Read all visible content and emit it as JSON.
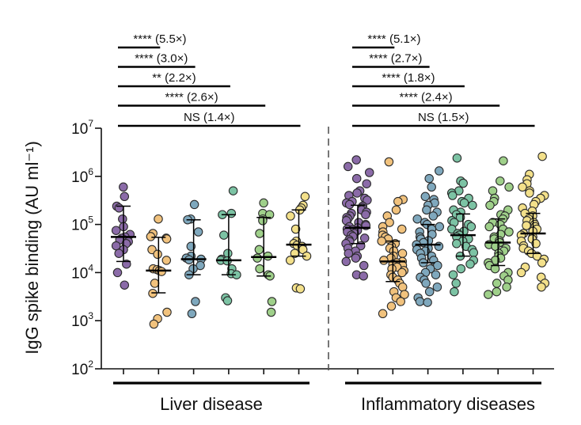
{
  "chart_data": {
    "type": "scatter",
    "y_scale": "log10",
    "ylabel": "IgG spike binding (AU ml⁻¹)",
    "ylim": [
      100,
      10000000
    ],
    "y_ticks": [
      {
        "value": 100,
        "base": "10",
        "exp": "2"
      },
      {
        "value": 1000,
        "base": "10",
        "exp": "3"
      },
      {
        "value": 10000,
        "base": "10",
        "exp": "4"
      },
      {
        "value": 100000,
        "base": "10",
        "exp": "5"
      },
      {
        "value": 1000000,
        "base": "10",
        "exp": "6"
      },
      {
        "value": 10000000,
        "base": "10",
        "exp": "7"
      }
    ],
    "colors": [
      "#8b6ba8",
      "#f1c27d",
      "#7fa8bd",
      "#7cc3a4",
      "#9fd08a",
      "#f3e08a"
    ],
    "panels": [
      {
        "label": "Liver disease",
        "series": [
          {
            "values": [
              600000,
              380000,
              240000,
              220000,
              130000,
              90000,
              75000,
              62000,
              55000,
              52000,
              48000,
              44000,
              40000,
              36000,
              30000,
              25000,
              15000,
              10000,
              5500
            ],
            "median": 55000,
            "q1": 17000,
            "q3": 240000
          },
          {
            "values": [
              130000,
              65000,
              56000,
              52000,
              50000,
              30000,
              24000,
              18000,
              12000,
              11500,
              11000,
              10500,
              6000,
              3700,
              1500,
              1100,
              850
            ],
            "median": 11000,
            "q1": 3800,
            "q3": 54000
          },
          {
            "values": [
              260000,
              130000,
              125000,
              70000,
              35000,
              22000,
              20000,
              19000,
              18500,
              14000,
              12000,
              9000,
              2500,
              1400
            ],
            "median": 19000,
            "q1": 9000,
            "q3": 125000
          },
          {
            "values": [
              500000,
              170000,
              160000,
              60000,
              25000,
              19000,
              18000,
              17500,
              12000,
              9500,
              9000,
              3000,
              2600
            ],
            "median": 18000,
            "q1": 9000,
            "q3": 160000
          },
          {
            "values": [
              280000,
              170000,
              160000,
              130000,
              120000,
              65000,
              30000,
              22000,
              20000,
              12000,
              9000,
              8500,
              2500,
              1500
            ],
            "median": 21000,
            "q1": 8500,
            "q3": 140000
          },
          {
            "values": [
              380000,
              250000,
              220000,
              200000,
              150000,
              80000,
              45000,
              40000,
              37000,
              35000,
              30000,
              25000,
              22000,
              18000,
              4800,
              4600
            ],
            "median": 38000,
            "q1": 22000,
            "q3": 200000
          }
        ]
      },
      {
        "label": "Inflammatory diseases",
        "series": [
          {
            "values": [
              2200000,
              1600000,
              1200000,
              900000,
              700000,
              500000,
              450000,
              400000,
              350000,
              320000,
              300000,
              280000,
              260000,
              240000,
              220000,
              200000,
              180000,
              170000,
              160000,
              150000,
              140000,
              130000,
              120000,
              110000,
              100000,
              95000,
              90000,
              85000,
              80000,
              78000,
              75000,
              70000,
              65000,
              60000,
              56000,
              52000,
              48000,
              44000,
              40000,
              36000,
              32000,
              28000,
              25000,
              22000,
              20000,
              17000,
              14000,
              9000,
              8500
            ],
            "median": 85000,
            "q1": 40000,
            "q3": 250000
          },
          {
            "values": [
              2000000,
              330000,
              300000,
              200000,
              150000,
              110000,
              90000,
              80000,
              70000,
              60000,
              55000,
              50000,
              45000,
              40000,
              35000,
              32000,
              28000,
              25000,
              22000,
              20000,
              18000,
              17000,
              16000,
              15000,
              14000,
              13000,
              12000,
              11000,
              10000,
              9000,
              8000,
              7000,
              6000,
              5000,
              4000,
              3500,
              3000,
              2500,
              2000,
              1400
            ],
            "median": 17000,
            "q1": 6500,
            "q3": 45000
          },
          {
            "values": [
              1300000,
              900000,
              600000,
              380000,
              330000,
              280000,
              250000,
              200000,
              180000,
              150000,
              130000,
              110000,
              100000,
              90000,
              80000,
              70000,
              62000,
              55000,
              50000,
              46000,
              42000,
              38000,
              35000,
              32000,
              30000,
              28000,
              25000,
              22000,
              20000,
              18000,
              16000,
              14000,
              12000,
              10000,
              9000,
              8000,
              7000,
              6000,
              5000,
              4000,
              3000,
              2500,
              2400
            ],
            "median": 38000,
            "q1": 16000,
            "q3": 100000
          },
          {
            "values": [
              2400000,
              800000,
              720000,
              500000,
              450000,
              400000,
              350000,
              300000,
              280000,
              250000,
              200000,
              180000,
              160000,
              140000,
              120000,
              110000,
              100000,
              90000,
              80000,
              72000,
              65000,
              60000,
              55000,
              50000,
              45000,
              40000,
              35000,
              30000,
              26000,
              22000,
              18000,
              15000,
              12000,
              9000,
              6000,
              4000
            ],
            "median": 60000,
            "q1": 22000,
            "q3": 165000
          },
          {
            "values": [
              2100000,
              800000,
              600000,
              500000,
              350000,
              300000,
              250000,
              200000,
              160000,
              150000,
              130000,
              110000,
              100000,
              90000,
              80000,
              70000,
              62000,
              55000,
              50000,
              46000,
              42000,
              38000,
              35000,
              32000,
              28000,
              25000,
              22000,
              20000,
              18000,
              16000,
              14000,
              12000,
              10000,
              8500,
              7000,
              6000,
              5000,
              4000,
              3500
            ],
            "median": 42000,
            "q1": 14000,
            "q3": 130000
          },
          {
            "values": [
              2600000,
              1100000,
              850000,
              700000,
              600000,
              500000,
              450000,
              400000,
              350000,
              300000,
              260000,
              220000,
              190000,
              170000,
              150000,
              130000,
              120000,
              110000,
              100000,
              95000,
              90000,
              80000,
              72000,
              65000,
              60000,
              55000,
              50000,
              45000,
              40000,
              36000,
              32000,
              28000,
              25000,
              22000,
              19000,
              16000,
              13000,
              10000,
              8000,
              6000,
              5000
            ],
            "median": 65000,
            "q1": 25000,
            "q3": 170000
          }
        ]
      }
    ],
    "comparisons": [
      [
        {
          "to": 2,
          "stars": "****",
          "ratio": "(5.5×)"
        },
        {
          "to": 3,
          "stars": "****",
          "ratio": "(3.0×)"
        },
        {
          "to": 4,
          "stars": "**",
          "ratio": "(2.2×)"
        },
        {
          "to": 5,
          "stars": "****",
          "ratio": "(2.6×)"
        },
        {
          "to": 6,
          "stars": "NS",
          "ratio": "(1.4×)"
        }
      ],
      [
        {
          "to": 2,
          "stars": "****",
          "ratio": "(5.1×)"
        },
        {
          "to": 3,
          "stars": "****",
          "ratio": "(2.7×)"
        },
        {
          "to": 4,
          "stars": "****",
          "ratio": "(1.8×)"
        },
        {
          "to": 5,
          "stars": "****",
          "ratio": "(2.4×)"
        },
        {
          "to": 6,
          "stars": "NS",
          "ratio": "(1.5×)"
        }
      ]
    ]
  }
}
